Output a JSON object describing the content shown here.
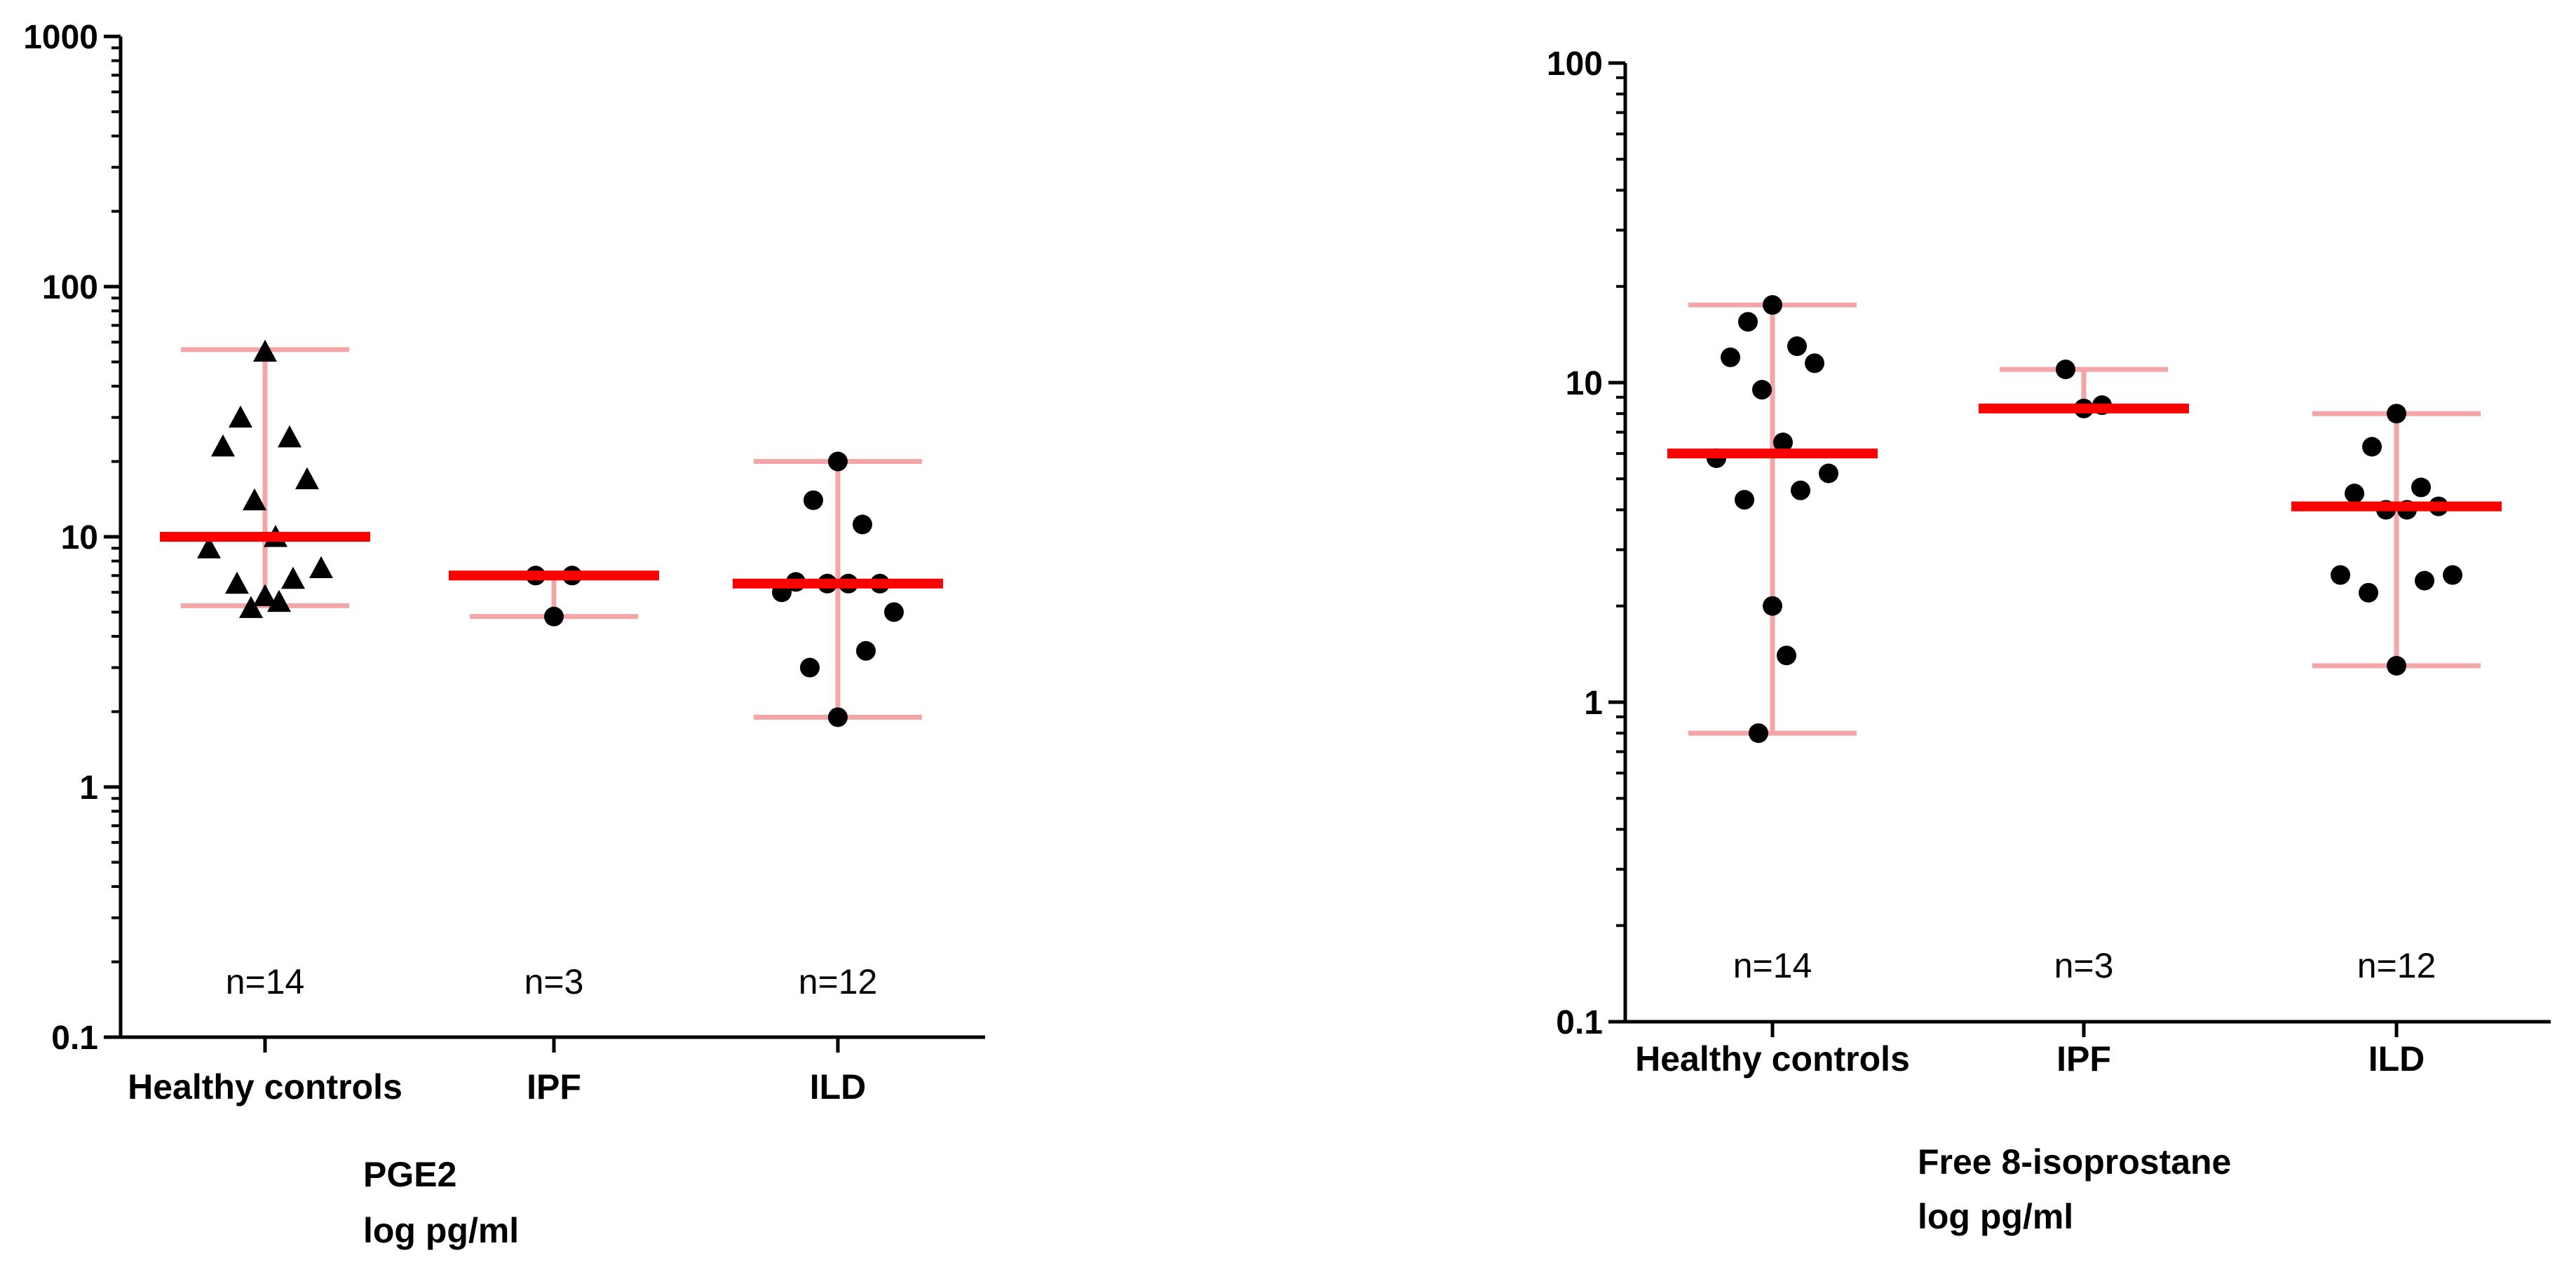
{
  "chart_data": [
    {
      "type": "scatter",
      "ylabel": [
        "PGE2",
        "log pg/ml"
      ],
      "y_scale": "log",
      "ylim": [
        0.1,
        1000
      ],
      "y_ticks": [
        "0.1",
        "1",
        "10",
        "100",
        "1000"
      ],
      "categories": [
        "Healthy controls",
        "IPF",
        "ILD"
      ],
      "n_labels": [
        "n=14",
        "n=3",
        "n=12"
      ],
      "groups": [
        {
          "name": "Healthy controls",
          "marker": "triangle",
          "points": [
            55,
            30,
            25,
            23,
            17,
            14,
            10,
            9,
            7.5,
            6.8,
            6.5,
            5.8,
            5.5,
            5.2
          ],
          "median": 10,
          "range_low": 5.3,
          "range_high": 56
        },
        {
          "name": "IPF",
          "marker": "circle",
          "points": [
            7,
            7,
            4.8
          ],
          "median": 7,
          "range_low": 4.8,
          "range_high": 7
        },
        {
          "name": "ILD",
          "marker": "circle",
          "points": [
            20,
            14,
            11.2,
            6.6,
            6.5,
            6.5,
            6.5,
            6.0,
            5.0,
            3.5,
            3.0,
            1.9
          ],
          "median": 6.5,
          "range_low": 1.9,
          "range_high": 20
        }
      ],
      "colors": {
        "median": "#ff0000",
        "range": "#f4a6a6",
        "points": "#000000"
      }
    },
    {
      "type": "scatter",
      "ylabel": [
        "Free 8-isoprostane",
        "log pg/ml"
      ],
      "y_scale": "log",
      "ylim": [
        0.1,
        100
      ],
      "y_ticks": [
        "0.1",
        "1",
        "10",
        "100"
      ],
      "categories": [
        "Healthy controls",
        "IPF",
        "ILD"
      ],
      "n_labels": [
        "n=14",
        "n=3",
        "n=12"
      ],
      "groups": [
        {
          "name": "Healthy controls",
          "marker": "circle",
          "points": [
            17.5,
            15.5,
            13,
            12,
            11.5,
            9.5,
            6.5,
            5.8,
            5.2,
            4.6,
            4.3,
            2.0,
            1.4,
            0.8
          ],
          "median": 6,
          "range_low": 0.8,
          "range_high": 17.5
        },
        {
          "name": "IPF",
          "marker": "circle",
          "points": [
            11,
            8.5,
            8.3
          ],
          "median": 8.3,
          "range_low": 8.3,
          "range_high": 11
        },
        {
          "name": "ILD",
          "marker": "circle",
          "points": [
            8.0,
            6.3,
            4.7,
            4.5,
            4.1,
            4.0,
            4.0,
            2.5,
            2.5,
            2.4,
            2.2,
            1.3
          ],
          "median": 4.1,
          "range_low": 1.3,
          "range_high": 8.0
        }
      ],
      "colors": {
        "median": "#ff0000",
        "range": "#f4a6a6",
        "points": "#000000"
      }
    }
  ]
}
